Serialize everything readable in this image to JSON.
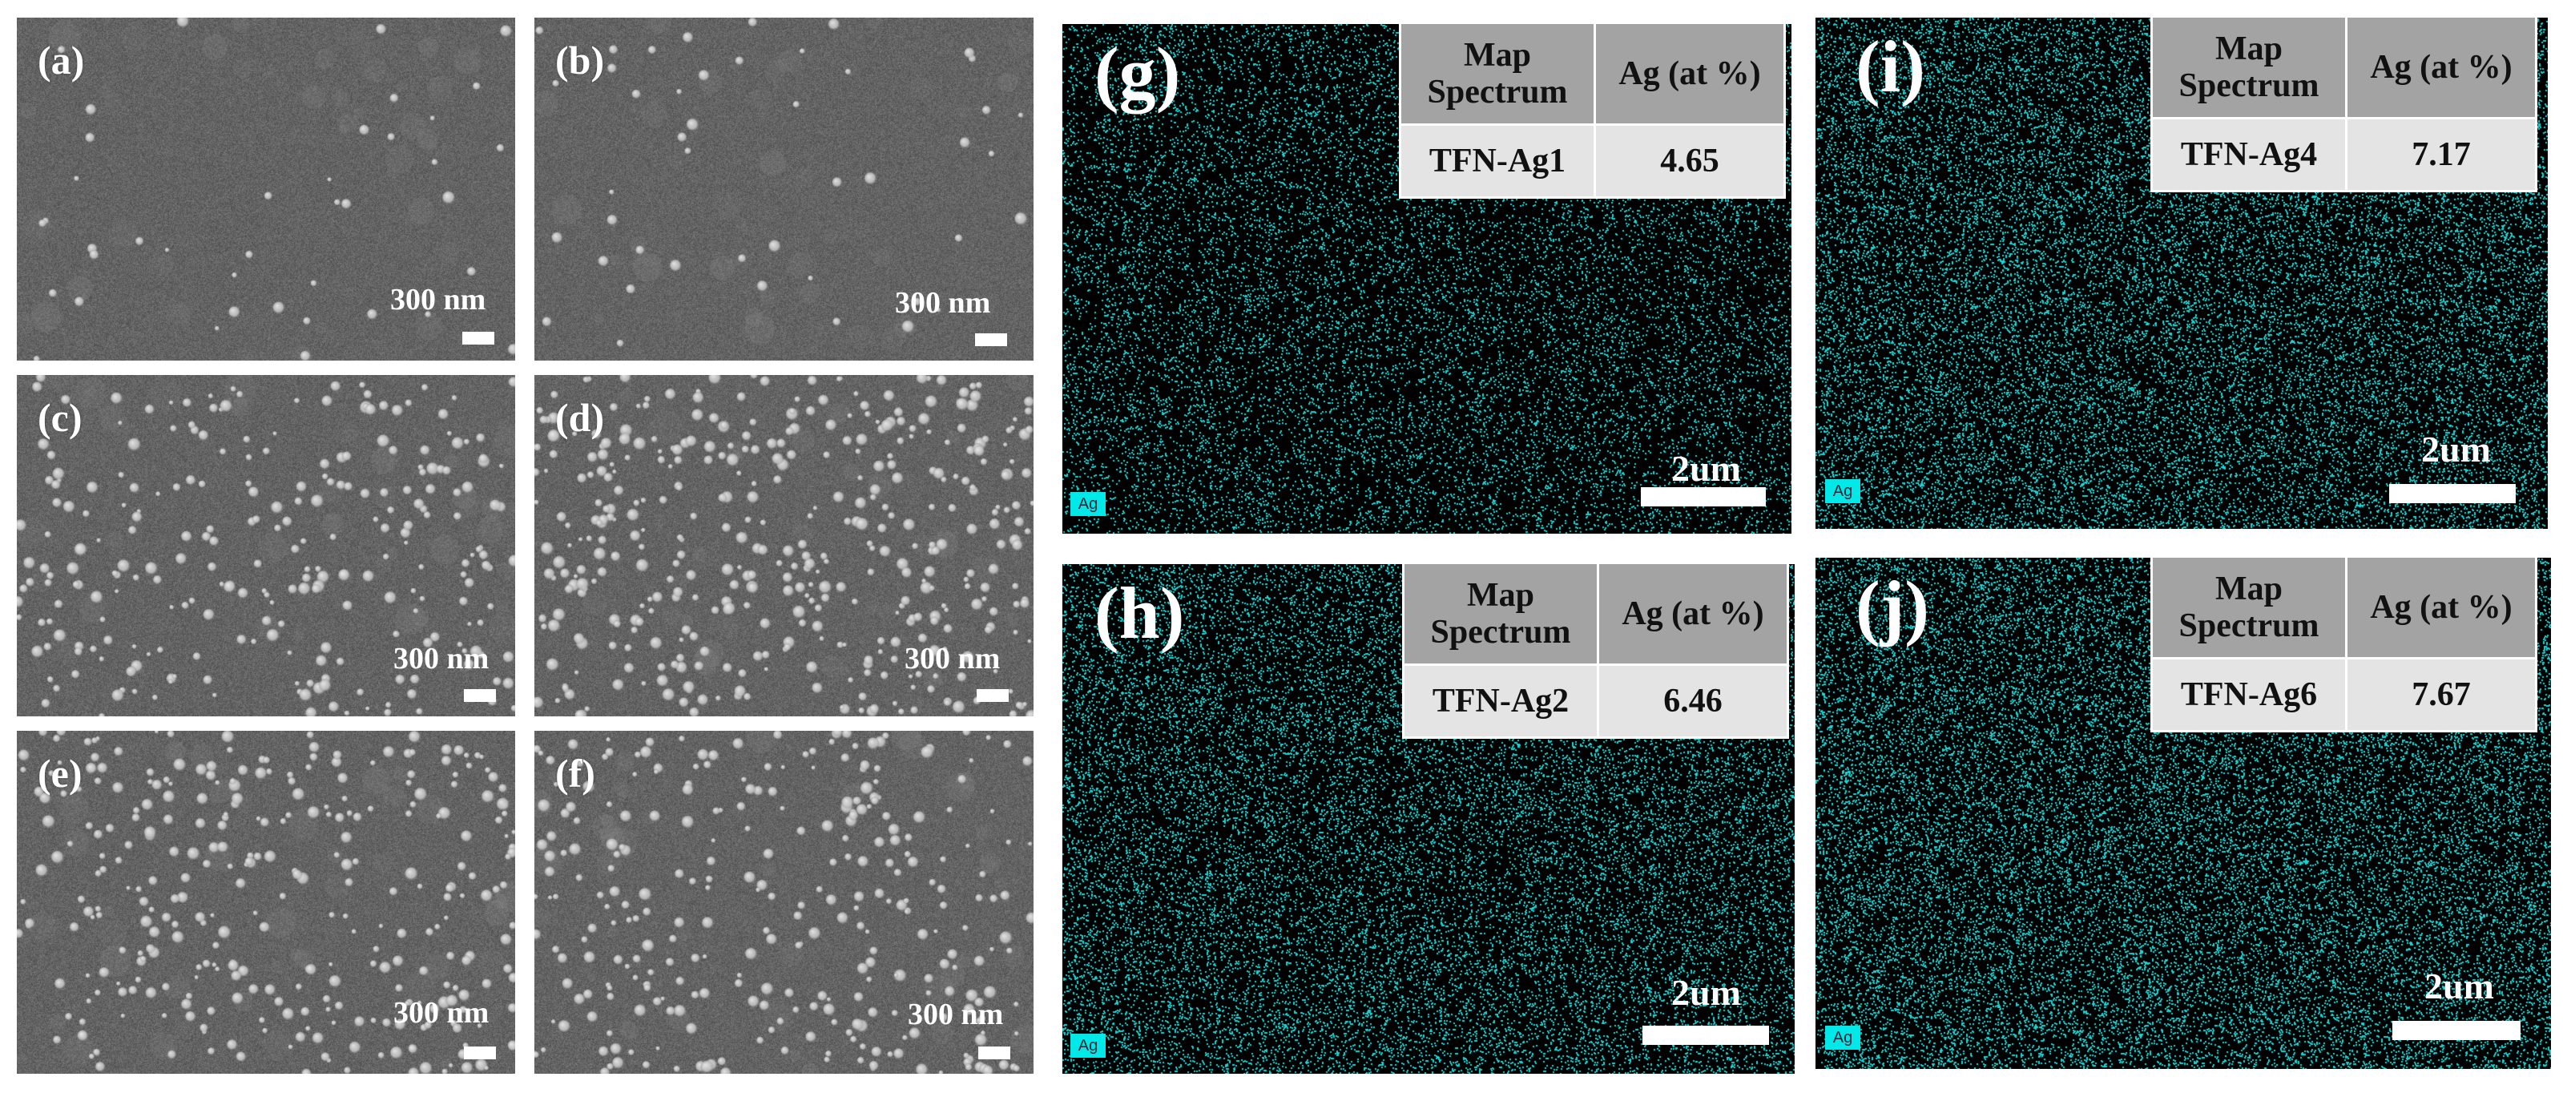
{
  "sem_panels": [
    {
      "label": "(a)",
      "scale": "300 nm"
    },
    {
      "label": "(b)",
      "scale": "300 nm"
    },
    {
      "label": "(c)",
      "scale": "300 nm"
    },
    {
      "label": "(d)",
      "scale": "300 nm"
    },
    {
      "label": "(e)",
      "scale": "300 nm"
    },
    {
      "label": "(f)",
      "scale": "300 nm"
    }
  ],
  "edx_panels": [
    {
      "label": "(g)",
      "scale": "2um",
      "element": "Ag",
      "map_header": "Map Spectrum",
      "value_header": "Ag (at %)",
      "sample": "TFN-Ag1",
      "value": "4.65",
      "ag_fraction_shown": 4.65
    },
    {
      "label": "(h)",
      "scale": "2um",
      "element": "Ag",
      "map_header": "Map Spectrum",
      "value_header": "Ag (at %)",
      "sample": "TFN-Ag2",
      "value": "6.46",
      "ag_fraction_shown": 6.46
    },
    {
      "label": "(i)",
      "scale": "2um",
      "element": "Ag",
      "map_header": "Map Spectrum",
      "value_header": "Ag (at %)",
      "sample": "TFN-Ag4",
      "value": "7.17",
      "ag_fraction_shown": 7.17
    },
    {
      "label": "(j)",
      "scale": "2um",
      "element": "Ag",
      "map_header": "Map Spectrum",
      "value_header": "Ag (at %)",
      "sample": "TFN-Ag6",
      "value": "7.67",
      "ag_fraction_shown": 7.67
    }
  ],
  "colors": {
    "sem_background": "#5e5e5e",
    "edx_background": "#000000",
    "edx_dots": "#19d6d6",
    "table_header": "#a3a3a3",
    "table_cell": "#e4e4e4",
    "element_tag": "#00e8e8"
  }
}
